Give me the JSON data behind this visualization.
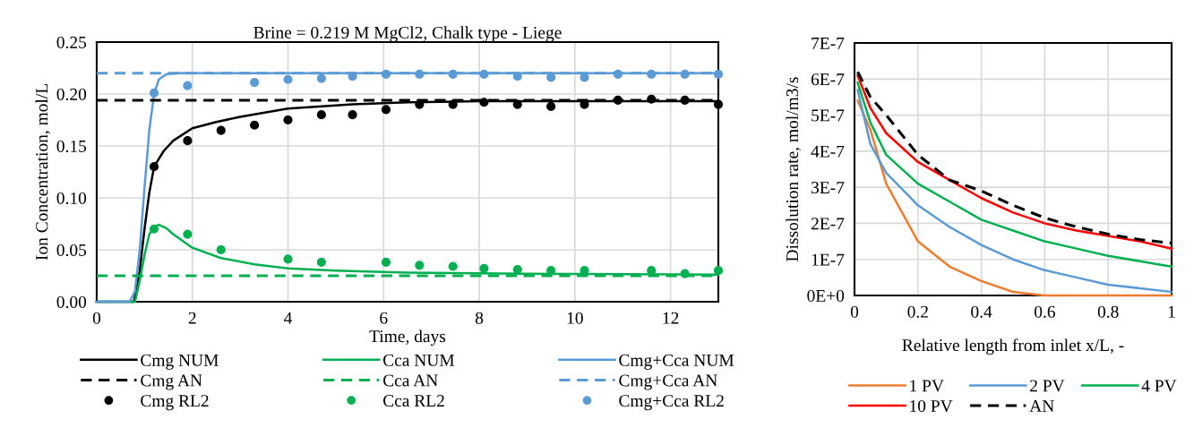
{
  "chart_data": [
    {
      "type": "line",
      "title": "Brine = 0.219 M MgCl2, Chalk type - Liege",
      "xlabel": "Time, days",
      "ylabel": "Ion Concentration, mol/L",
      "xlim": [
        0,
        13
      ],
      "xticks": [
        0,
        2,
        4,
        6,
        8,
        10,
        12
      ],
      "ylim": [
        0,
        0.25
      ],
      "yticks": [
        {
          "value": 0,
          "label": "0.00"
        },
        {
          "value": 0.05,
          "label": "0.05"
        },
        {
          "value": 0.1,
          "label": "0.10"
        },
        {
          "value": 0.15,
          "label": "0.15"
        },
        {
          "value": 0.2,
          "label": "0.20"
        },
        {
          "value": 0.25,
          "label": "0.25"
        }
      ],
      "grid": true,
      "legend": "bottom",
      "series": [
        {
          "name": "Cmg NUM",
          "type": "line",
          "line_style": "solid",
          "color": "#000000",
          "x": [
            0,
            0.78,
            0.9,
            1.0,
            1.1,
            1.2,
            1.4,
            1.6,
            2.0,
            2.5,
            3.0,
            4.0,
            5.35,
            6.5,
            8.0,
            10.0,
            13.0
          ],
          "values": [
            0,
            0,
            0.03,
            0.07,
            0.105,
            0.13,
            0.145,
            0.155,
            0.167,
            0.173,
            0.178,
            0.186,
            0.19,
            0.192,
            0.193,
            0.193,
            0.193
          ]
        },
        {
          "name": "Cca NUM",
          "type": "line",
          "line_style": "solid",
          "color": "#00b050",
          "x": [
            0,
            0.8,
            0.9,
            1.0,
            1.1,
            1.2,
            1.3,
            1.45,
            1.6,
            2.0,
            2.6,
            3.3,
            4.0,
            5.0,
            6.5,
            9.0,
            13.0
          ],
          "values": [
            0,
            0,
            0.02,
            0.045,
            0.065,
            0.072,
            0.074,
            0.071,
            0.065,
            0.052,
            0.042,
            0.036,
            0.032,
            0.03,
            0.028,
            0.027,
            0.026
          ]
        },
        {
          "name": "Cmg+Cca NUM",
          "type": "line",
          "line_style": "solid",
          "color": "#5b9bd5",
          "x": [
            0,
            0.69,
            0.8,
            0.9,
            1.0,
            1.1,
            1.2,
            1.3,
            1.45,
            1.7,
            13.0
          ],
          "values": [
            0,
            0,
            0.01,
            0.05,
            0.11,
            0.165,
            0.2,
            0.214,
            0.219,
            0.22,
            0.22
          ]
        },
        {
          "name": "Cmg AN",
          "type": "line",
          "line_style": "dashed",
          "color": "#000000",
          "x": [
            0,
            13
          ],
          "values": [
            0.194,
            0.194
          ]
        },
        {
          "name": "Cca AN",
          "type": "line",
          "line_style": "dashed",
          "color": "#00b050",
          "x": [
            0,
            13
          ],
          "values": [
            0.025,
            0.025
          ]
        },
        {
          "name": "Cmg+Cca AN",
          "type": "line",
          "line_style": "dashed",
          "color": "#5b9bd5",
          "x": [
            0,
            13
          ],
          "values": [
            0.22,
            0.22
          ]
        },
        {
          "name": "Cmg RL2",
          "type": "scatter",
          "marker": "circle",
          "color": "#000000",
          "x": [
            1.2,
            1.9,
            2.6,
            3.3,
            4.0,
            4.7,
            5.35,
            6.05,
            6.75,
            7.45,
            8.1,
            8.8,
            9.5,
            10.2,
            10.9,
            11.6,
            12.3,
            13.0
          ],
          "values": [
            0.13,
            0.155,
            0.165,
            0.17,
            0.175,
            0.18,
            0.18,
            0.185,
            0.19,
            0.19,
            0.192,
            0.19,
            0.188,
            0.19,
            0.194,
            0.195,
            0.194,
            0.19
          ]
        },
        {
          "name": "Cca RL2",
          "type": "scatter",
          "marker": "circle",
          "color": "#00b050",
          "x": [
            1.2,
            1.9,
            2.6,
            3.3,
            4.0,
            4.7,
            5.35,
            6.05,
            6.75,
            7.45,
            8.1,
            8.8,
            9.5,
            10.2,
            10.9,
            11.6,
            12.3,
            13.0
          ],
          "values": [
            0.07,
            0.065,
            0.05,
            null,
            0.041,
            0.038,
            null,
            0.038,
            0.035,
            0.034,
            0.032,
            0.031,
            0.03,
            0.03,
            null,
            0.03,
            0.027,
            0.03
          ]
        },
        {
          "name": "Cmg+Cca RL2",
          "type": "scatter",
          "marker": "circle",
          "color": "#5b9bd5",
          "x": [
            1.2,
            1.9,
            2.6,
            3.3,
            4.0,
            4.7,
            5.35,
            6.05,
            6.75,
            7.45,
            8.1,
            8.8,
            9.5,
            10.2,
            10.9,
            11.6,
            12.3,
            13.0
          ],
          "values": [
            0.201,
            0.208,
            null,
            0.211,
            0.214,
            0.215,
            0.217,
            0.219,
            0.219,
            0.219,
            0.219,
            0.217,
            0.216,
            0.216,
            0.219,
            0.219,
            0.219,
            0.219
          ]
        }
      ]
    },
    {
      "type": "line",
      "xlabel": "Relative length from inlet x/L, -",
      "ylabel": "Dissolution rate, mol/m3/s",
      "xlim": [
        0,
        1
      ],
      "xticks": [
        0,
        0.2,
        0.4,
        0.6,
        0.8,
        1
      ],
      "ylim": [
        0,
        7e-07
      ],
      "yticks": [
        {
          "value": 0,
          "label": "0E+0"
        },
        {
          "value": 1e-07,
          "label": "1E-7"
        },
        {
          "value": 2e-07,
          "label": "2E-7"
        },
        {
          "value": 3e-07,
          "label": "3E-7"
        },
        {
          "value": 4e-07,
          "label": "4E-7"
        },
        {
          "value": 5e-07,
          "label": "5E-7"
        },
        {
          "value": 6e-07,
          "label": "6E-7"
        },
        {
          "value": 7e-07,
          "label": "7E-7"
        }
      ],
      "grid": true,
      "legend": "bottom",
      "x": [
        0.01,
        0.05,
        0.1,
        0.2,
        0.3,
        0.4,
        0.5,
        0.6,
        0.7,
        0.8,
        0.9,
        1.0
      ],
      "series": [
        {
          "name": "1 PV",
          "line_style": "solid",
          "color": "#ed7d31",
          "values": [
            5.4e-07,
            4.6e-07,
            3.1e-07,
            1.5e-07,
            8e-08,
            4e-08,
            1e-08,
            0,
            0,
            0,
            0,
            0
          ]
        },
        {
          "name": "2 PV",
          "line_style": "solid",
          "color": "#5b9bd5",
          "values": [
            5.7e-07,
            4.2e-07,
            3.4e-07,
            2.5e-07,
            1.9e-07,
            1.4e-07,
            1e-07,
            7e-08,
            5e-08,
            3e-08,
            2e-08,
            1e-08
          ]
        },
        {
          "name": "4 PV",
          "line_style": "solid",
          "color": "#00b050",
          "values": [
            5.9e-07,
            4.8e-07,
            3.9e-07,
            3.1e-07,
            2.6e-07,
            2.1e-07,
            1.8e-07,
            1.5e-07,
            1.3e-07,
            1.1e-07,
            9.5e-08,
            8e-08
          ]
        },
        {
          "name": "10 PV",
          "line_style": "solid",
          "color": "#ff0000",
          "values": [
            6.1e-07,
            5.2e-07,
            4.5e-07,
            3.7e-07,
            3.2e-07,
            2.7e-07,
            2.3e-07,
            2e-07,
            1.8e-07,
            1.65e-07,
            1.5e-07,
            1.3e-07
          ]
        },
        {
          "name": "AN",
          "line_style": "dashed",
          "color": "#000000",
          "values": [
            6.2e-07,
            5.5e-07,
            5e-07,
            3.9e-07,
            3.2e-07,
            2.9e-07,
            2.5e-07,
            2.15e-07,
            1.9e-07,
            1.7e-07,
            1.55e-07,
            1.45e-07
          ]
        }
      ]
    }
  ]
}
